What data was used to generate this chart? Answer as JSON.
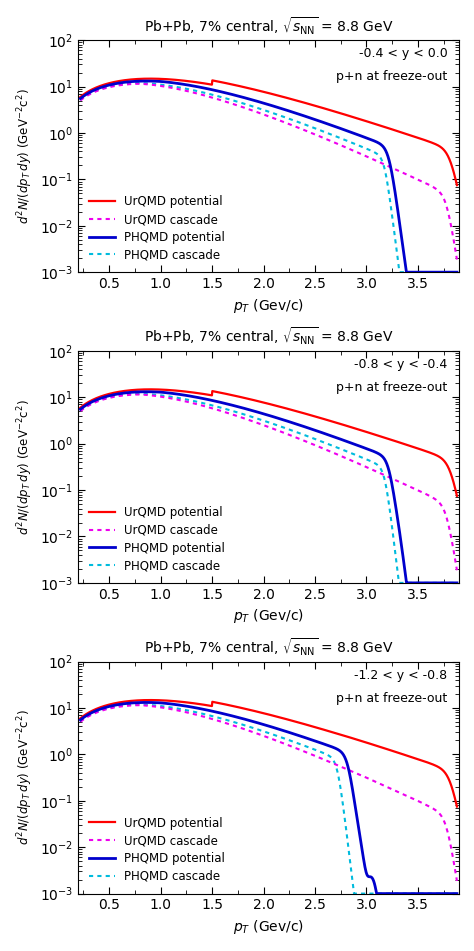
{
  "panels": [
    {
      "rapidity_label": "-0.4 < y < 0.0",
      "freeze_label": "p+n at freeze-out"
    },
    {
      "rapidity_label": "-0.8 < y < -0.4",
      "freeze_label": "p+n at freeze-out"
    },
    {
      "rapidity_label": "-1.2 < y < -0.8",
      "freeze_label": "p+n at freeze-out"
    }
  ],
  "colors": {
    "urqmd_potential": "#ff0000",
    "urqmd_cascade": "#ee00ee",
    "phqmd_potential": "#0000cc",
    "phqmd_cascade": "#00bbdd"
  },
  "legend_labels": [
    "UrQMD potential",
    "UrQMD cascade",
    "PHQMD potential",
    "PHQMD cascade"
  ],
  "ylabel": "$d^2N/(dp_T\\,dy)$ (GeV$^{-2}$c$^2$)",
  "xlabel": "$p_T$ (Gev/c)",
  "xlim": [
    0.2,
    3.9
  ],
  "ylim_min": 0.001,
  "ylim_max": 100,
  "figsize": [
    4.74,
    9.51
  ],
  "dpi": 100
}
